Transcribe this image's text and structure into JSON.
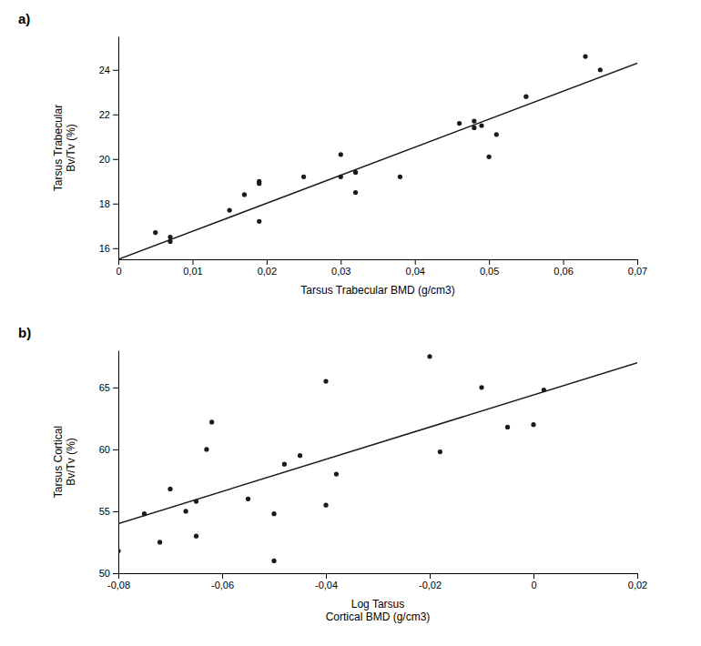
{
  "chart_data": [
    {
      "type": "scatter",
      "title": "a)",
      "xlabel": "Tarsus Trabecular BMD (g/cm3)",
      "ylabel": "Tarsus Trabecular\nBv/Tv (%)",
      "xlim": [
        0,
        0.07
      ],
      "ylim": [
        15.5,
        25.5
      ],
      "xticks": [
        0,
        {
          "value": 0.01,
          "label": "0,01"
        },
        {
          "value": 0.02,
          "label": "0,02"
        },
        {
          "value": 0.03,
          "label": "0,03"
        },
        {
          "value": 0.04,
          "label": "0,04"
        },
        {
          "value": 0.05,
          "label": "0,05"
        },
        {
          "value": 0.06,
          "label": "0,06"
        },
        {
          "value": 0.07,
          "label": "0,07"
        }
      ],
      "yticks": [
        16,
        18,
        20,
        22,
        24
      ],
      "series": [
        {
          "type": "scatter",
          "color": "#1a1a1a",
          "x": [
            0.005,
            0.007,
            0.007,
            0.015,
            0.017,
            0.019,
            0.019,
            0.019,
            0.025,
            0.03,
            0.03,
            0.032,
            0.032,
            0.038,
            0.046,
            0.048,
            0.048,
            0.049,
            0.05,
            0.051,
            0.055,
            0.063,
            0.065
          ],
          "values": [
            16.7,
            16.5,
            16.3,
            17.7,
            18.4,
            17.2,
            18.9,
            19.0,
            19.2,
            20.2,
            19.2,
            18.5,
            19.4,
            19.2,
            21.6,
            21.7,
            21.4,
            21.5,
            20.1,
            21.1,
            22.8,
            24.6,
            24.0
          ]
        },
        {
          "type": "line",
          "color": "#1a1a1a",
          "x": [
            0.0,
            0.07
          ],
          "values": [
            15.5,
            24.3
          ]
        }
      ]
    },
    {
      "type": "scatter",
      "title": "b)",
      "xlabel": "Log Tarsus\nCortical BMD (g/cm3)",
      "ylabel": "Tarsus Cortical\nBv/Tv (%)",
      "xlim": [
        -0.08,
        0.02
      ],
      "ylim": [
        50,
        68
      ],
      "xticks": [
        {
          "value": -0.08,
          "label": "-0,08"
        },
        {
          "value": -0.06,
          "label": "-0,06"
        },
        {
          "value": -0.04,
          "label": "-0,04"
        },
        {
          "value": -0.02,
          "label": "-0,02"
        },
        0,
        {
          "value": 0.02,
          "label": "0,02"
        }
      ],
      "yticks": [
        50,
        55,
        60,
        65
      ],
      "series": [
        {
          "type": "scatter",
          "color": "#1a1a1a",
          "x": [
            -0.08,
            -0.075,
            -0.072,
            -0.07,
            -0.067,
            -0.065,
            -0.065,
            -0.063,
            -0.062,
            -0.055,
            -0.05,
            -0.05,
            -0.048,
            -0.045,
            -0.04,
            -0.04,
            -0.038,
            -0.02,
            -0.018,
            -0.01,
            -0.005,
            0.0,
            0.002
          ],
          "values": [
            51.8,
            54.8,
            52.5,
            56.8,
            55.0,
            55.8,
            53.0,
            60.0,
            62.2,
            56.0,
            54.8,
            51.0,
            58.8,
            59.5,
            55.5,
            65.5,
            58.0,
            67.5,
            59.8,
            65.0,
            61.8,
            62.0,
            64.8
          ]
        },
        {
          "type": "line",
          "color": "#1a1a1a",
          "x": [
            -0.08,
            0.02
          ],
          "values": [
            54.0,
            67.0
          ]
        }
      ]
    }
  ]
}
